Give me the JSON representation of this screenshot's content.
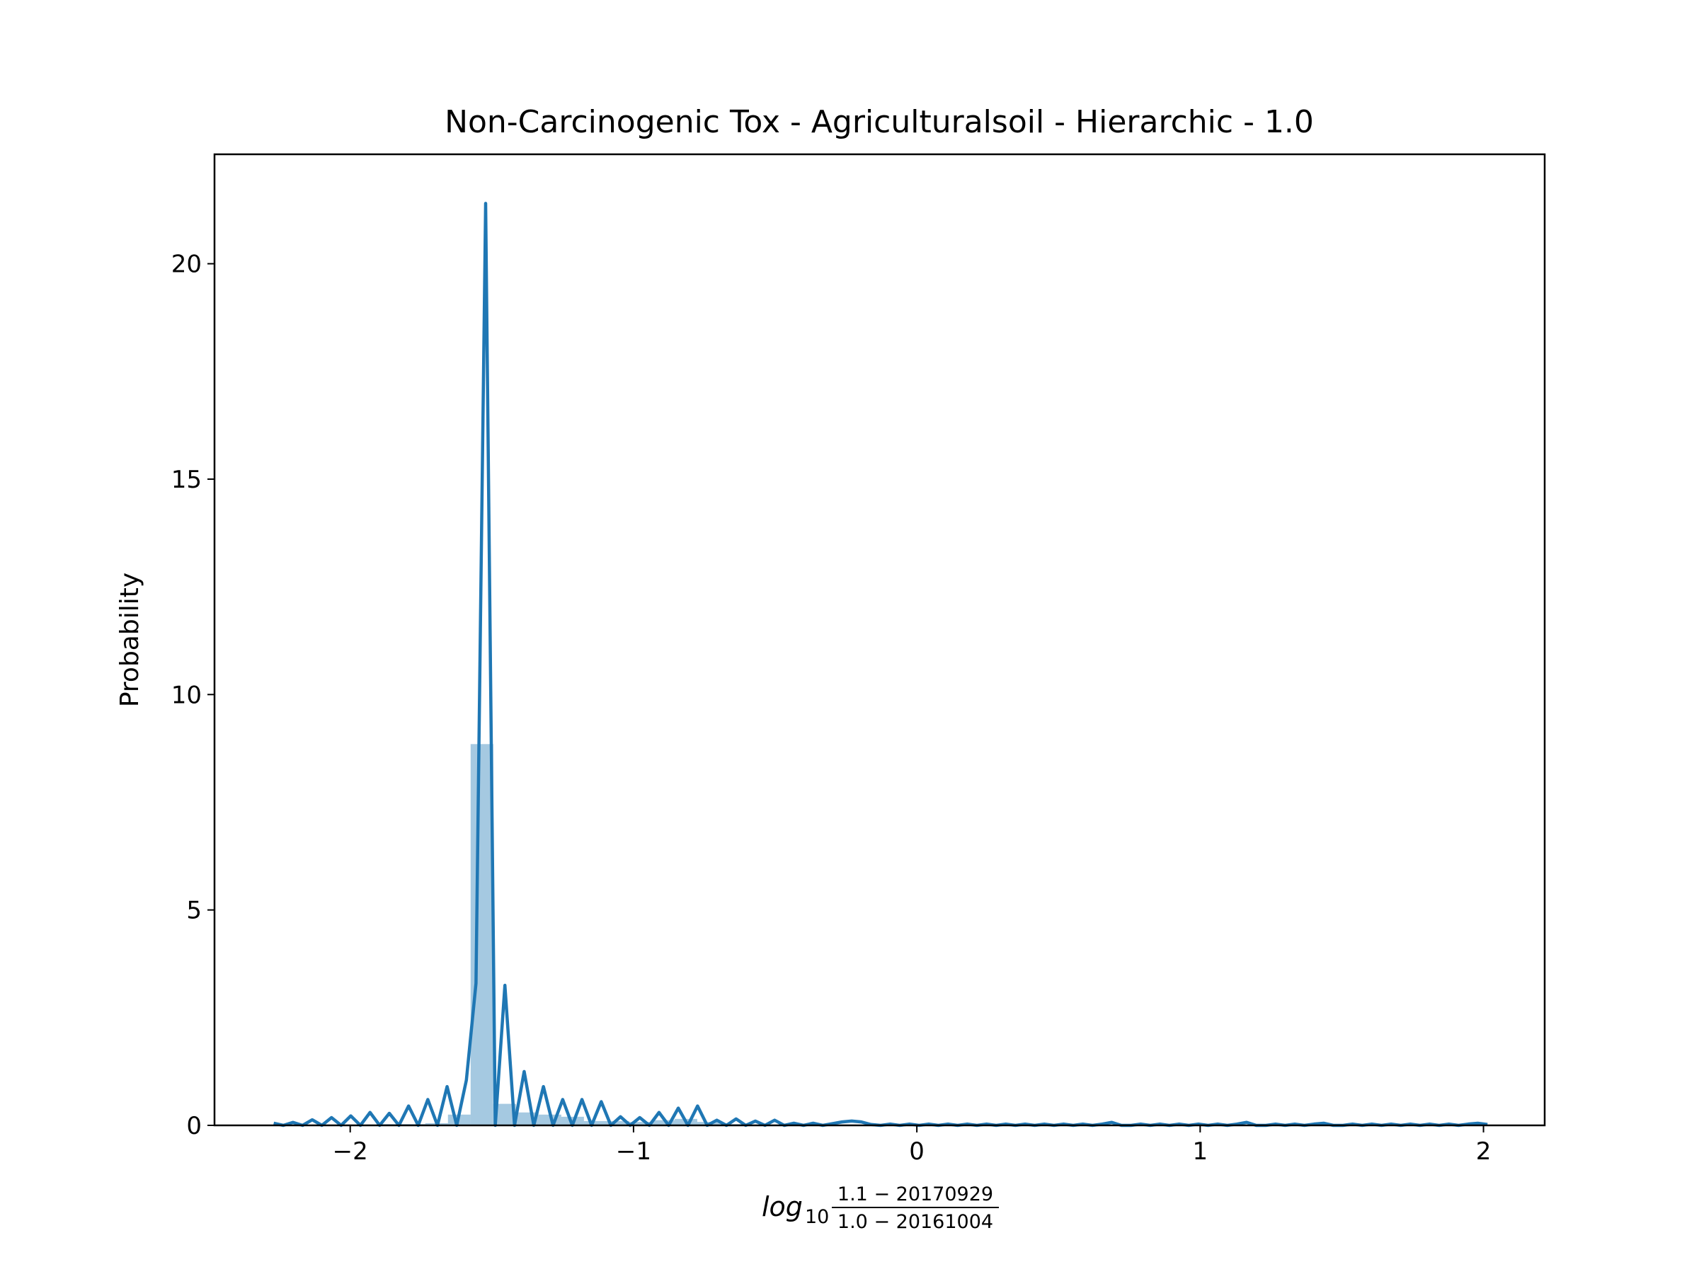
{
  "chart_data": {
    "type": "histogram",
    "title": "Non-Carcinogenic Tox - Agriculturalsoil - Hierarchic - 1.0",
    "ylabel": "Probability",
    "xlabel": {
      "prefix": "log",
      "subscript": "10",
      "numerator": "1.1 − 20170929",
      "denominator": "1.0 − 20161004"
    },
    "color": "#1f77b4",
    "bins": [
      -2.295,
      -2.215,
      -2.135,
      -2.055,
      -1.975,
      -1.895,
      -1.815,
      -1.735,
      -1.655,
      -1.575,
      -1.495,
      -1.415,
      -1.335,
      -1.255,
      -1.175,
      -1.095,
      -1.015,
      -0.935,
      -0.855,
      -0.775,
      -0.695,
      -0.615,
      -0.535,
      -0.455,
      -0.375,
      -0.295,
      -0.215,
      -0.135,
      -0.055,
      0.025,
      0.105,
      0.185,
      0.265,
      0.345,
      0.425,
      0.505,
      0.585,
      0.665,
      0.745,
      0.825,
      0.905,
      0.985,
      1.065,
      1.145,
      1.225,
      1.305,
      1.385,
      1.465,
      1.545,
      1.625,
      1.705,
      1.785,
      1.865,
      1.945,
      2.025
    ],
    "values": [
      0.01,
      0.01,
      0.02,
      0.02,
      0.02,
      0.03,
      0.03,
      0.05,
      0.25,
      8.85,
      0.5,
      0.3,
      0.25,
      0.2,
      0.1,
      0.1,
      0.08,
      0.12,
      0.15,
      0.08,
      0.03,
      0.02,
      0.02,
      0.01,
      0.01,
      0.02,
      0.01,
      0.01,
      0.01,
      0.01,
      0.01,
      0.01,
      0.01,
      0.01,
      0.01,
      0.01,
      0.01,
      0.01,
      0.01,
      0.01,
      0.01,
      0.01,
      0.01,
      0.01,
      0.01,
      0.01,
      0.01,
      0.01,
      0.01,
      0.01,
      0.01,
      0.01,
      0.01,
      0.01
    ],
    "kde": {
      "color": "#1f77b4",
      "x": [
        -2.27,
        -2.236,
        -2.202,
        -2.168,
        -2.134,
        -2.1,
        -2.066,
        -2.032,
        -1.998,
        -1.964,
        -1.93,
        -1.896,
        -1.862,
        -1.828,
        -1.794,
        -1.76,
        -1.726,
        -1.692,
        -1.658,
        -1.624,
        -1.59,
        -1.556,
        -1.522,
        -1.488,
        -1.454,
        -1.42,
        -1.386,
        -1.352,
        -1.318,
        -1.284,
        -1.25,
        -1.216,
        -1.182,
        -1.148,
        -1.114,
        -1.08,
        -1.046,
        -1.012,
        -0.978,
        -0.944,
        -0.91,
        -0.876,
        -0.842,
        -0.808,
        -0.774,
        -0.74,
        -0.706,
        -0.672,
        -0.638,
        -0.604,
        -0.57,
        -0.536,
        -0.502,
        -0.468,
        -0.434,
        -0.4,
        -0.366,
        -0.332,
        -0.298,
        -0.264,
        -0.23,
        -0.196,
        -0.162,
        -0.128,
        -0.094,
        -0.06,
        -0.026,
        0.008,
        0.042,
        0.076,
        0.11,
        0.144,
        0.178,
        0.212,
        0.246,
        0.28,
        0.314,
        0.348,
        0.382,
        0.416,
        0.45,
        0.484,
        0.518,
        0.552,
        0.586,
        0.62,
        0.654,
        0.688,
        0.722,
        0.756,
        0.79,
        0.824,
        0.858,
        0.892,
        0.926,
        0.96,
        0.994,
        1.028,
        1.062,
        1.096,
        1.13,
        1.164,
        1.198,
        1.232,
        1.266,
        1.3,
        1.334,
        1.368,
        1.402,
        1.436,
        1.47,
        1.504,
        1.538,
        1.572,
        1.606,
        1.64,
        1.674,
        1.708,
        1.742,
        1.776,
        1.81,
        1.844,
        1.878,
        1.912,
        1.946,
        1.98,
        2.014
      ],
      "values": [
        0.05,
        0,
        0.07,
        0,
        0.13,
        0,
        0.18,
        0,
        0.22,
        0,
        0.3,
        0,
        0.28,
        0,
        0.45,
        0,
        0.6,
        0,
        0.9,
        0,
        1.05,
        3.3,
        21.4,
        0,
        3.25,
        0,
        1.25,
        0,
        0.9,
        0,
        0.6,
        0,
        0.6,
        0,
        0.55,
        0,
        0.2,
        0,
        0.18,
        0,
        0.3,
        0,
        0.4,
        0,
        0.45,
        0,
        0.12,
        0,
        0.15,
        0,
        0.1,
        0,
        0.12,
        0,
        0.05,
        0,
        0.05,
        0,
        0.04,
        0.08,
        0.1,
        0.08,
        0.02,
        0,
        0.03,
        0,
        0.03,
        0,
        0.03,
        0,
        0.03,
        0,
        0.03,
        0,
        0.03,
        0,
        0.03,
        0,
        0.03,
        0,
        0.03,
        0,
        0.03,
        0,
        0.03,
        0,
        0.03,
        0.07,
        0,
        0,
        0.03,
        0,
        0.03,
        0,
        0.03,
        0,
        0.03,
        0,
        0.03,
        0,
        0.03,
        0.07,
        0,
        0,
        0.03,
        0,
        0.03,
        0,
        0.03,
        0.05,
        0,
        0,
        0.03,
        0,
        0.03,
        0,
        0.03,
        0,
        0.03,
        0,
        0.03,
        0,
        0.03,
        0,
        0.03,
        0.05,
        0.02
      ]
    },
    "xlim": [
      -2.479,
      2.216
    ],
    "ylim": [
      0,
      22.54
    ],
    "xticks": [
      {
        "value": -2,
        "label": "−2"
      },
      {
        "value": -1,
        "label": "−1"
      },
      0,
      1,
      2
    ],
    "yticks": [
      0,
      5,
      10,
      15,
      20
    ]
  }
}
